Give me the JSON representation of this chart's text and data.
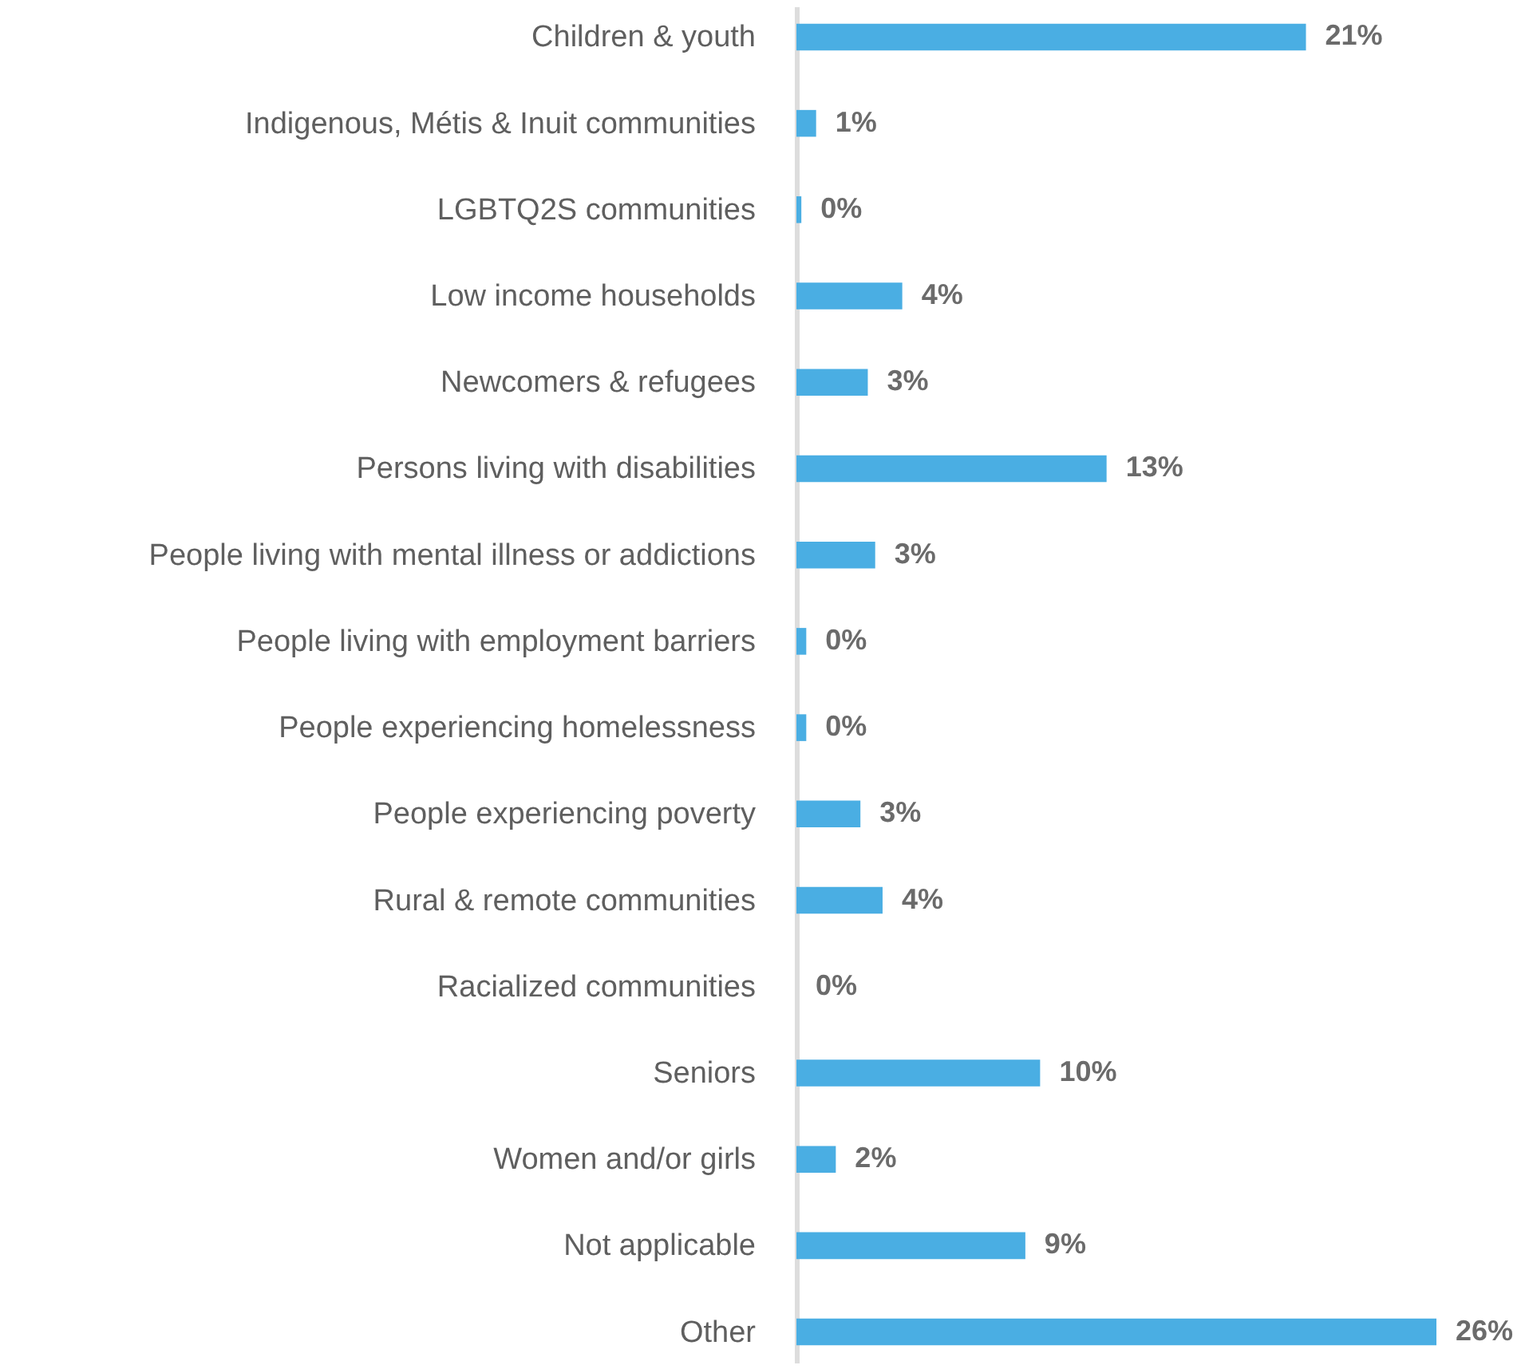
{
  "chart_data": {
    "type": "bar",
    "orientation": "horizontal",
    "categories": [
      "Children & youth",
      "Indigenous, Métis & Inuit communities",
      "LGBTQ2S communities",
      "Low income households",
      "Newcomers & refugees",
      "Persons living with disabilities",
      "People living with mental illness or addictions",
      "People living with employment barriers",
      "People experiencing homelessness",
      "People experiencing poverty",
      "Rural & remote communities",
      "Racialized communities",
      "Seniors",
      "Women and/or girls",
      "Not applicable",
      "Other"
    ],
    "values": [
      20.7,
      0.8,
      0.2,
      4.3,
      2.9,
      12.6,
      3.2,
      0.4,
      0.4,
      2.6,
      3.5,
      0,
      9.9,
      1.6,
      9.3,
      26
    ],
    "value_labels": [
      "21%",
      "1%",
      "0%",
      "4%",
      "3%",
      "13%",
      "3%",
      "0%",
      "0%",
      "3%",
      "4%",
      "0%",
      "10%",
      "2%",
      "9%",
      "26%"
    ],
    "color": "#4aaee3"
  }
}
